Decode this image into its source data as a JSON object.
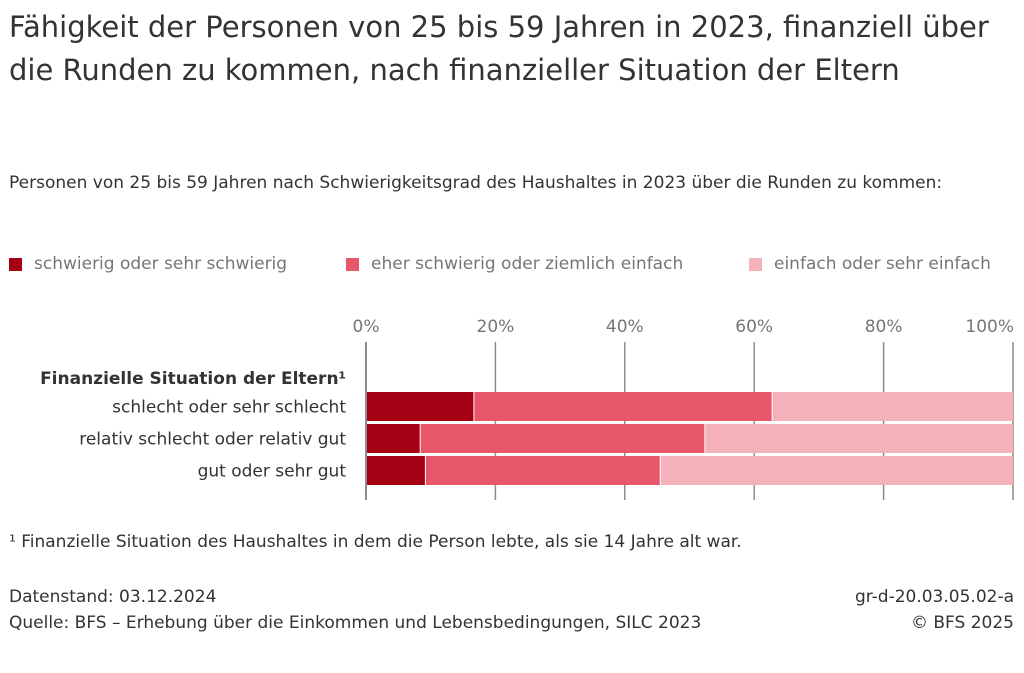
{
  "title": "Fähigkeit der Personen von 25 bis 59 Jahren in 2023, finanziell über die Runden zu kommen, nach finanzieller Situation der Eltern",
  "subtitle": "Personen von 25 bis 59 Jahren nach Schwierigkeitsgrad des Haushaltes in 2023 über die Runden zu kommen:",
  "footnote": "¹ Finanzielle Situation des Haushaltes in dem die Person lebte, als sie 14 Jahre alt war.",
  "footer": {
    "datenstand": "Datenstand: 03.12.2024",
    "quelle": "Quelle: BFS – Erhebung über die Einkommen und Lebensbedingungen, SILC 2023",
    "id": "gr-d-20.03.05.02-a",
    "copyright": "© BFS 2025"
  },
  "chart_data": {
    "type": "bar",
    "orientation": "horizontal",
    "stacked": true,
    "title": "Fähigkeit der Personen von 25 bis 59 Jahren in 2023, finanziell über die Runden zu kommen, nach finanzieller Situation der Eltern",
    "category_axis_title": "Finanzielle Situation der Eltern¹",
    "categories": [
      "schlecht oder sehr schlecht",
      "relativ schlecht oder relativ gut",
      "gut oder sehr gut"
    ],
    "series": [
      {
        "name": "schwierig oder sehr schwierig",
        "color": "#a50014",
        "values": [
          16.6,
          8.3,
          9.1
        ]
      },
      {
        "name": "eher schwierig oder ziemlich einfach",
        "color": "#e75769",
        "values": [
          46.1,
          44.0,
          36.3
        ]
      },
      {
        "name": "einfach oder sehr einfach",
        "color": "#f4b1b9",
        "values": [
          37.3,
          47.7,
          54.6
        ]
      }
    ],
    "xlim": [
      0,
      100
    ],
    "xticks": [
      "0%",
      "20%",
      "40%",
      "60%",
      "80%",
      "100%"
    ],
    "grid": true,
    "legend_position": "top"
  }
}
